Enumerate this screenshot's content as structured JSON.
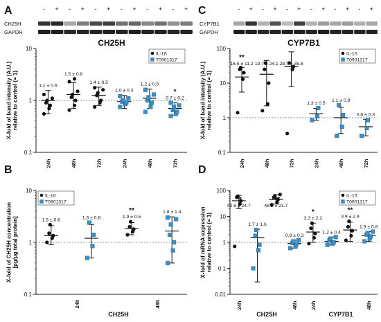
{
  "panel_letters": [
    "A",
    "B",
    "C",
    "D"
  ],
  "blots": [
    {
      "treat_marks": [
        "-",
        "+",
        "-",
        "+",
        "-",
        "+",
        "-",
        "+",
        "-",
        "+",
        "-",
        "+"
      ],
      "rows": [
        {
          "label": "CH25H",
          "intensities": [
            0.85,
            0.9,
            0.3,
            0.5,
            0.75,
            0.8,
            0.55,
            0.6,
            0.45,
            0.55,
            0.4,
            0.5
          ]
        },
        {
          "label": "GAPDH",
          "intensities": [
            0.95,
            0.95,
            0.9,
            0.92,
            0.93,
            0.94,
            0.92,
            0.95,
            0.93,
            0.94,
            0.92,
            0.93
          ]
        }
      ]
    },
    {
      "treat_marks": [
        "-",
        "+",
        "-",
        "+",
        "-",
        "+",
        "-",
        "+",
        "-",
        "+",
        "-",
        "+"
      ],
      "rows": [
        {
          "label": "CYP7B1",
          "intensities": [
            0.3,
            0.85,
            0.25,
            0.7,
            0.2,
            0.8,
            0.25,
            0.35,
            0.3,
            0.35,
            0.25,
            0.3
          ]
        },
        {
          "label": "GAPDH",
          "intensities": [
            0.95,
            0.95,
            0.9,
            0.92,
            0.93,
            0.94,
            0.92,
            0.95,
            0.93,
            0.94,
            0.92,
            0.93
          ]
        }
      ]
    }
  ],
  "colors": {
    "il1b": "#111111",
    "t0901317": "#3a8fc7",
    "axis": "#222222",
    "refline": "#666666"
  },
  "chart_data": [
    {
      "panel": "A",
      "type": "scatter",
      "title": "CH25H",
      "ylabel": "X-fold of band intensity (A.U.)\nrelative to control (= 1)",
      "yscale": "log",
      "ylim": [
        0.1,
        10
      ],
      "ytick_labels": [
        "0.1",
        "1",
        "10"
      ],
      "reference_line": 1,
      "legend": [
        "IL-1ß",
        "T0901317"
      ],
      "legend_position": "top-right",
      "categories": [
        "24h",
        "48h",
        "72h",
        "24h",
        "48h",
        "72h"
      ],
      "series": [
        {
          "name": "IL-1ß",
          "color": "#111111",
          "marker": "circle",
          "groups": [
            {
              "category_index": 0,
              "label": "1.1 ± 0.6",
              "sig": "",
              "mean": 1.0,
              "err": [
                0.55,
                1.55
              ],
              "points": [
                0.55,
                0.7,
                0.8,
                0.9,
                1.0,
                1.1,
                1.3
              ]
            },
            {
              "category_index": 1,
              "label": "1.5 ± 0.8",
              "sig": "",
              "mean": 1.3,
              "err": [
                0.7,
                2.2
              ],
              "points": [
                0.65,
                0.8,
                1.0,
                1.15,
                1.3,
                1.5,
                2.3,
                2.6
              ]
            },
            {
              "category_index": 2,
              "label": "1.4 ± 0.5",
              "sig": "",
              "mean": 1.25,
              "err": [
                0.8,
                1.8
              ],
              "points": [
                0.75,
                0.9,
                1.0,
                1.25,
                1.4,
                1.6,
                1.75
              ]
            }
          ]
        },
        {
          "name": "T0901317",
          "color": "#3a8fc7",
          "marker": "square",
          "groups": [
            {
              "category_index": 3,
              "label": "1.0 ± 0.3",
              "sig": "",
              "mean": 0.95,
              "err": [
                0.7,
                1.25
              ],
              "points": [
                0.75,
                0.85,
                0.9,
                0.95,
                1.0,
                1.1,
                1.2
              ]
            },
            {
              "category_index": 4,
              "label": "1.2 ± 0.5",
              "sig": "",
              "mean": 1.1,
              "err": [
                0.7,
                1.65
              ],
              "points": [
                0.6,
                0.75,
                0.9,
                1.0,
                1.15,
                1.3,
                1.6
              ]
            },
            {
              "category_index": 5,
              "label": "0.7 ± 0.2",
              "sig": "*",
              "mean": 0.7,
              "err": [
                0.52,
                0.9
              ],
              "points": [
                0.5,
                0.55,
                0.6,
                0.65,
                0.75,
                0.8,
                0.9
              ]
            }
          ]
        }
      ]
    },
    {
      "panel": "B",
      "type": "scatter",
      "title": "",
      "ylabel": "X-fold of CH25H concentration\n[pg/µg total protein]",
      "yscale": "log",
      "ylim": [
        0.1,
        10
      ],
      "ytick_labels": [
        "0.1",
        "1",
        "10"
      ],
      "reference_line": 1,
      "legend": [
        "IL-1ß",
        "T0901317"
      ],
      "legend_position": "top-left",
      "categories": [
        "24h",
        "48h"
      ],
      "group_label": "CH25H",
      "series": [
        {
          "name": "IL-1ß",
          "color": "#111111",
          "marker": "circle",
          "groups": [
            {
              "slot": 0,
              "label": "1.5 ± 0.6",
              "sig": "",
              "mean": 1.35,
              "err": [
                0.9,
                2.1
              ],
              "points": [
                1.0,
                1.2,
                1.35,
                1.5,
                2.2
              ]
            },
            {
              "slot": 2,
              "label": "1.9 ± 0.5",
              "sig": "**",
              "mean": 1.85,
              "err": [
                1.4,
                2.4
              ],
              "points": [
                1.4,
                1.6,
                1.8,
                2.0,
                2.5
              ]
            }
          ]
        },
        {
          "name": "T0901317",
          "color": "#3a8fc7",
          "marker": "square",
          "groups": [
            {
              "slot": 1,
              "label": "1.3 ± 0.8",
              "sig": "",
              "mean": 1.2,
              "err": [
                0.5,
                2.2
              ],
              "points": [
                0.5,
                0.85,
                1.4,
                2.4
              ]
            },
            {
              "slot": 3,
              "label": "1.8 ± 1.4",
              "sig": "",
              "mean": 1.65,
              "err": [
                0.4,
                3.1
              ],
              "points": [
                0.4,
                0.7,
                1.0,
                1.4,
                2.2,
                2.8,
                3.0
              ]
            }
          ]
        }
      ]
    },
    {
      "panel": "C",
      "type": "scatter",
      "title": "CYP7B1",
      "ylabel": "X-fold of band intensity (A.U.)\nrelative to control (= 1)",
      "yscale": "log",
      "ylim": [
        0.1,
        100
      ],
      "ytick_labels": [
        "0.1",
        "1",
        "10",
        "100"
      ],
      "reference_line": 1,
      "legend": [
        "IL-1ß",
        "T0901317"
      ],
      "legend_position": "top-right",
      "categories": [
        "24h",
        "48h",
        "72h",
        "24h",
        "48h",
        "72h"
      ],
      "series": [
        {
          "name": "IL-1ß",
          "color": "#111111",
          "marker": "circle",
          "groups": [
            {
              "category_index": 0,
              "label": "16.5 ± 11.2",
              "sig": "**",
              "mean": 15,
              "err": [
                5.5,
                28
              ],
              "points": [
                1.4,
                13,
                20,
                25,
                28
              ]
            },
            {
              "category_index": 1,
              "label": "19.7 ± 24.1",
              "sig": "",
              "mean": 18,
              "err": [
                2.2,
                45
              ],
              "points": [
                1.6,
                2.5,
                10,
                25,
                38
              ]
            },
            {
              "category_index": 2,
              "label": "28.7 ± 35.8",
              "sig": "",
              "mean": 30,
              "err": [
                8,
                80
              ],
              "points": [
                0.35,
                25,
                30,
                38
              ]
            }
          ]
        },
        {
          "name": "T0901317",
          "color": "#3a8fc7",
          "marker": "square",
          "groups": [
            {
              "category_index": 3,
              "label": "1.3 ± 0.5",
              "sig": "",
              "mean": 1.3,
              "err": [
                0.85,
                1.85
              ],
              "points": [
                0.85,
                1.1,
                1.9
              ]
            },
            {
              "category_index": 4,
              "label": "1.1 ± 0.8",
              "sig": "",
              "mean": 1.0,
              "err": [
                0.35,
                2.0
              ],
              "points": [
                0.3,
                0.55,
                1.2,
                2.3
              ]
            },
            {
              "category_index": 5,
              "label": "0.6 ± 0.3",
              "sig": "",
              "mean": 0.55,
              "err": [
                0.3,
                0.9
              ],
              "points": [
                0.3,
                0.5,
                0.85
              ]
            }
          ]
        }
      ]
    },
    {
      "panel": "D",
      "type": "scatter",
      "title": "",
      "ylabel": "X-fold of mRNA expression\nrelative to control (= 1)",
      "yscale": "log",
      "ylim": [
        0.01,
        100
      ],
      "ytick_labels": [
        "0.01",
        "0.1",
        "1",
        "10",
        "100"
      ],
      "reference_line": 1,
      "legend": [
        "IL-1ß",
        "T0901317"
      ],
      "legend_position": "top-right",
      "categories": [
        "24h",
        "48h",
        "24h",
        "48h"
      ],
      "group_labels": [
        "CH25H",
        "CYP7B1"
      ],
      "series": [
        {
          "name": "IL-1ß",
          "color": "#111111",
          "marker": "circle",
          "groups": [
            {
              "slot": 0,
              "label": "42.8 ± 24.7",
              "sig": "**",
              "mean": 40,
              "err": [
                20,
                65
              ],
              "points": [
                0.7,
                30,
                40,
                55,
                60
              ]
            },
            {
              "slot": 2,
              "label": "48.2 ± 21.7",
              "sig": "***",
              "mean": 45,
              "err": [
                30,
                68
              ],
              "points": [
                28,
                35,
                45,
                55,
                62,
                70
              ]
            },
            {
              "slot": 4,
              "label": "3.3 ± 2.2",
              "sig": "*",
              "mean": 2.5,
              "err": [
                1.0,
                5.5
              ],
              "points": [
                0.9,
                1.5,
                2.2,
                3.5,
                5.5
              ]
            },
            {
              "slot": 6,
              "label": "3.9 ± 2.9",
              "sig": "**",
              "mean": 3.0,
              "err": [
                1.1,
                6.0
              ],
              "points": [
                1.2,
                1.8,
                2.8,
                4.0,
                6.5
              ]
            }
          ]
        },
        {
          "name": "T0901317",
          "color": "#3a8fc7",
          "marker": "square",
          "groups": [
            {
              "slot": 1,
              "label": "1.7 ± 1.6",
              "sig": "",
              "mean": 1.5,
              "err": [
                0.03,
                3.2
              ],
              "points": [
                0.1,
                0.5,
                0.8,
                1.8,
                3.0
              ]
            },
            {
              "slot": 3,
              "label": "0.9 ± 0.3",
              "sig": "",
              "mean": 0.9,
              "err": [
                0.6,
                1.2
              ],
              "points": [
                0.6,
                0.7,
                0.85,
                0.95,
                1.1,
                1.2
              ]
            },
            {
              "slot": 5,
              "label": "1.2 ± 0.4",
              "sig": "",
              "mean": 1.1,
              "err": [
                0.8,
                1.6
              ],
              "points": [
                0.8,
                0.9,
                1.0,
                1.2,
                1.4,
                1.6
              ]
            },
            {
              "slot": 7,
              "label": "1.9 ± 0.8",
              "sig": "",
              "mean": 1.8,
              "err": [
                1.1,
                2.6
              ],
              "points": [
                1.1,
                1.4,
                1.7,
                2.0,
                2.3,
                2.6
              ]
            }
          ]
        }
      ]
    }
  ]
}
